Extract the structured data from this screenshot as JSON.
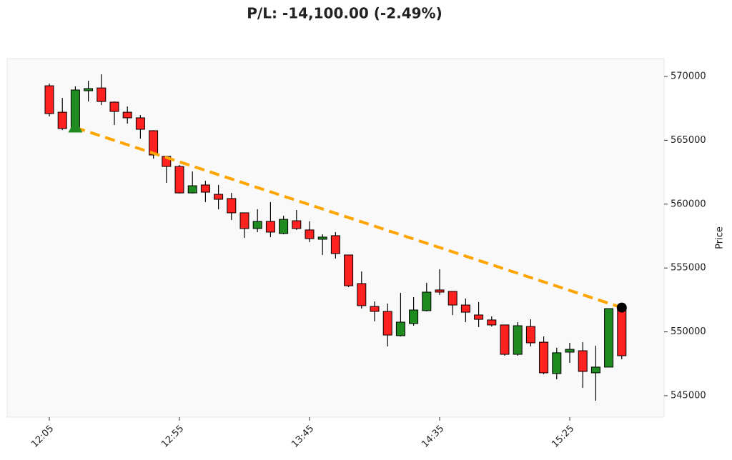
{
  "chart_data": {
    "type": "candlestick",
    "title": "P/L: -14,100.00 (-2.49%)",
    "ylabel": "Price",
    "categories": [
      "12:05",
      null,
      null,
      null,
      null,
      null,
      null,
      null,
      null,
      null,
      "12:55",
      null,
      null,
      null,
      null,
      null,
      null,
      null,
      null,
      null,
      "13:45",
      null,
      null,
      null,
      null,
      null,
      null,
      null,
      null,
      null,
      "14:35",
      null,
      null,
      null,
      null,
      null,
      null,
      null,
      null,
      null,
      "15:25",
      null,
      null,
      null,
      null
    ],
    "open": [
      569270,
      567200,
      565800,
      568880,
      569100,
      567990,
      567200,
      566760,
      565750,
      563740,
      562950,
      560880,
      561500,
      560770,
      560440,
      559320,
      558090,
      558650,
      557700,
      558700,
      557980,
      557250,
      557530,
      556020,
      553780,
      551990,
      551600,
      549700,
      550650,
      551660,
      553280,
      553170,
      552100,
      551320,
      550930,
      550540,
      548240,
      550420,
      549190,
      546730,
      548410,
      548520,
      546790,
      547240,
      551820
    ],
    "high": [
      569440,
      568320,
      569220,
      569660,
      570170,
      568040,
      567650,
      566980,
      565800,
      563790,
      563070,
      562560,
      561830,
      561500,
      560880,
      559320,
      559600,
      560160,
      559090,
      559540,
      558650,
      557640,
      557810,
      556020,
      554730,
      552380,
      552210,
      553050,
      552720,
      553840,
      554900,
      553170,
      552610,
      552330,
      551210,
      550540,
      550760,
      550980,
      549640,
      548750,
      549140,
      549190,
      548910,
      551820,
      552160
    ],
    "low": [
      566870,
      565800,
      565640,
      568040,
      567760,
      566200,
      566310,
      565130,
      563570,
      561670,
      560830,
      560830,
      560160,
      559600,
      558760,
      557360,
      557810,
      557420,
      557640,
      557980,
      557030,
      556020,
      555740,
      553500,
      551820,
      550820,
      548860,
      549640,
      550480,
      551600,
      552890,
      551320,
      550760,
      550370,
      550420,
      548130,
      548130,
      548860,
      546680,
      546290,
      547570,
      545610,
      544610,
      547240,
      547850
    ],
    "close": [
      567090,
      565920,
      568940,
      569050,
      568040,
      567260,
      566760,
      565860,
      563850,
      562950,
      560880,
      561440,
      560940,
      560380,
      559320,
      558090,
      558650,
      557810,
      558810,
      558090,
      557300,
      557420,
      556130,
      553610,
      552050,
      551600,
      549750,
      550760,
      551710,
      553110,
      553110,
      552100,
      551540,
      550980,
      550540,
      548240,
      550480,
      549140,
      546790,
      548360,
      548630,
      546900,
      547240,
      551820,
      548130
    ],
    "up_color": "#1f8a1f",
    "down_color": "#ff2020",
    "trade": {
      "entry_index": 2,
      "entry_price": 566000,
      "exit_index": 44,
      "exit_price": 551900,
      "entry_color": "#1f8a1f",
      "exit_color": "#000000",
      "line_color": "#ffa500"
    },
    "ylim": [
      543320,
      571400
    ],
    "yticks": [
      545000,
      550000,
      555000,
      560000,
      565000,
      570000
    ]
  }
}
